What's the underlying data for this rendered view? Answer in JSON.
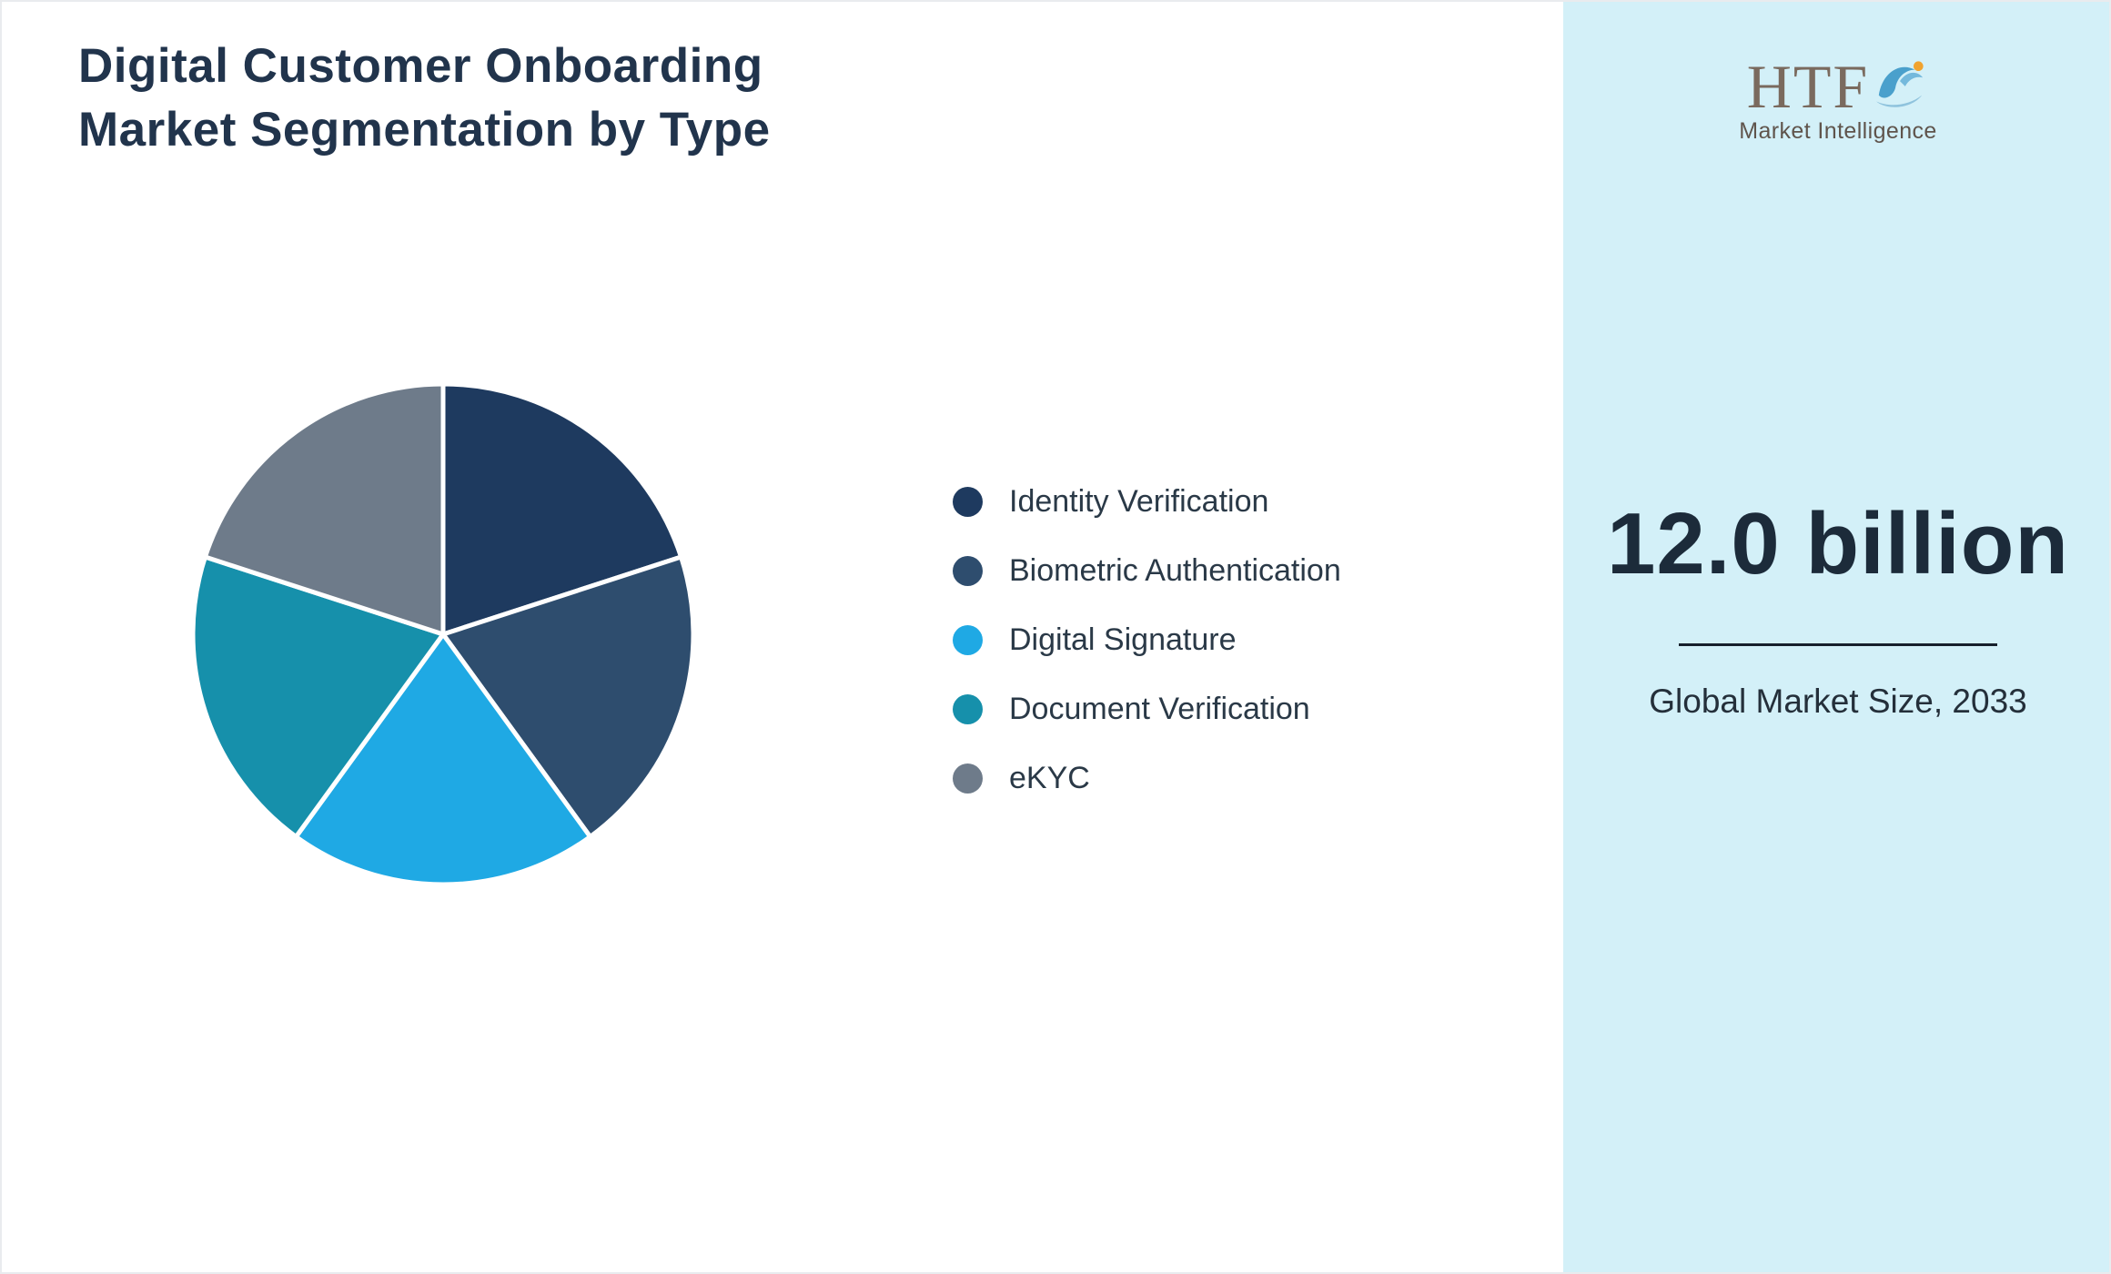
{
  "header": {
    "title_lines": [
      "Digital Customer Onboarding",
      "Market Segmentation by Type"
    ]
  },
  "logo": {
    "text": "HTF",
    "subtitle": "Market Intelligence"
  },
  "sidebar": {
    "background": "#d3f0f8",
    "market_size_value": "12.0 billion",
    "market_size_caption": "Global Market Size, 2033"
  },
  "chart_data": {
    "type": "pie",
    "title": "Digital Customer Onboarding Market Segmentation by Type",
    "unit": "percent",
    "start_angle_deg": 0,
    "direction": "clockwise",
    "legend_position": "right",
    "categories": [
      "Identity Verification",
      "Biometric Authentication",
      "Digital Signature",
      "Document Verification",
      "eKYC"
    ],
    "values": [
      20,
      20,
      20,
      20,
      20
    ],
    "segments": [
      {
        "label": "Identity Verification",
        "value": 20,
        "color": "#1e3a5f"
      },
      {
        "label": "Biometric Authentication",
        "value": 20,
        "color": "#2e4d6e"
      },
      {
        "label": "Digital Signature",
        "value": 20,
        "color": "#1fa9e4"
      },
      {
        "label": "Document Verification",
        "value": 20,
        "color": "#1690ab"
      },
      {
        "label": "eKYC",
        "value": 20,
        "color": "#6e7b8a"
      }
    ]
  }
}
